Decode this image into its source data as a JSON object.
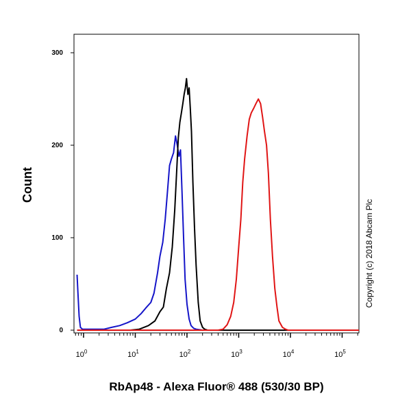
{
  "chart_data": {
    "type": "line",
    "title": "",
    "xlabel": "RbAp48 - Alexa Fluor® 488 (530/30 BP)",
    "ylabel": "Count",
    "x_scale": "log",
    "xlim": [
      0.75,
      250000
    ],
    "ylim": [
      0,
      300
    ],
    "x_ticks": [
      {
        "base": "10",
        "exp": "0",
        "value": 1
      },
      {
        "base": "10",
        "exp": "1",
        "value": 10
      },
      {
        "base": "10",
        "exp": "2",
        "value": 100
      },
      {
        "base": "10",
        "exp": "3",
        "value": 1000
      },
      {
        "base": "10",
        "exp": "4",
        "value": 10000
      },
      {
        "base": "10",
        "exp": "5",
        "value": 100000
      }
    ],
    "y_ticks": [
      "0",
      "100",
      "200",
      "300"
    ],
    "grid": false,
    "annotation": "Copyright (c) 2018 Abcam Plc",
    "series": [
      {
        "color": "#1414c8",
        "points": [
          [
            0.75,
            60
          ],
          [
            0.78,
            40
          ],
          [
            0.82,
            15
          ],
          [
            0.87,
            3
          ],
          [
            0.95,
            1
          ],
          [
            1.5,
            1
          ],
          [
            2.5,
            1
          ],
          [
            3.5,
            3
          ],
          [
            5,
            5
          ],
          [
            7,
            8
          ],
          [
            10,
            12
          ],
          [
            13,
            18
          ],
          [
            16,
            24
          ],
          [
            20,
            30
          ],
          [
            23,
            40
          ],
          [
            27,
            62
          ],
          [
            30,
            80
          ],
          [
            34,
            95
          ],
          [
            38,
            120
          ],
          [
            42,
            150
          ],
          [
            46,
            178
          ],
          [
            50,
            185
          ],
          [
            55,
            192
          ],
          [
            60,
            210
          ],
          [
            65,
            200
          ],
          [
            70,
            188
          ],
          [
            75,
            195
          ],
          [
            80,
            150
          ],
          [
            86,
            100
          ],
          [
            92,
            55
          ],
          [
            100,
            28
          ],
          [
            110,
            12
          ],
          [
            120,
            5
          ],
          [
            135,
            2
          ],
          [
            150,
            1
          ],
          [
            200,
            0
          ],
          [
            250000,
            0
          ]
        ]
      },
      {
        "color": "#000000",
        "points": [
          [
            0.75,
            0
          ],
          [
            8,
            0
          ],
          [
            12,
            1
          ],
          [
            18,
            5
          ],
          [
            24,
            10
          ],
          [
            30,
            20
          ],
          [
            35,
            25
          ],
          [
            40,
            45
          ],
          [
            46,
            62
          ],
          [
            52,
            90
          ],
          [
            58,
            130
          ],
          [
            63,
            170
          ],
          [
            68,
            208
          ],
          [
            73,
            225
          ],
          [
            78,
            235
          ],
          [
            83,
            245
          ],
          [
            88,
            255
          ],
          [
            93,
            262
          ],
          [
            98,
            272
          ],
          [
            104,
            255
          ],
          [
            110,
            262
          ],
          [
            116,
            240
          ],
          [
            122,
            215
          ],
          [
            130,
            160
          ],
          [
            140,
            110
          ],
          [
            150,
            70
          ],
          [
            165,
            30
          ],
          [
            180,
            10
          ],
          [
            200,
            3
          ],
          [
            220,
            1
          ],
          [
            250,
            0
          ],
          [
            250000,
            0
          ]
        ]
      },
      {
        "color": "#e01414",
        "points": [
          [
            0.75,
            0
          ],
          [
            250,
            0
          ],
          [
            400,
            0
          ],
          [
            500,
            1
          ],
          [
            600,
            6
          ],
          [
            700,
            15
          ],
          [
            800,
            30
          ],
          [
            900,
            55
          ],
          [
            1000,
            90
          ],
          [
            1100,
            120
          ],
          [
            1200,
            160
          ],
          [
            1300,
            185
          ],
          [
            1450,
            210
          ],
          [
            1600,
            228
          ],
          [
            1750,
            235
          ],
          [
            1950,
            240
          ],
          [
            2150,
            245
          ],
          [
            2400,
            250
          ],
          [
            2650,
            245
          ],
          [
            2900,
            230
          ],
          [
            3150,
            215
          ],
          [
            3450,
            200
          ],
          [
            3750,
            170
          ],
          [
            4100,
            120
          ],
          [
            4500,
            80
          ],
          [
            5000,
            45
          ],
          [
            5500,
            25
          ],
          [
            6000,
            10
          ],
          [
            7000,
            3
          ],
          [
            8000,
            1
          ],
          [
            9000,
            0
          ],
          [
            250000,
            0
          ]
        ]
      }
    ]
  }
}
